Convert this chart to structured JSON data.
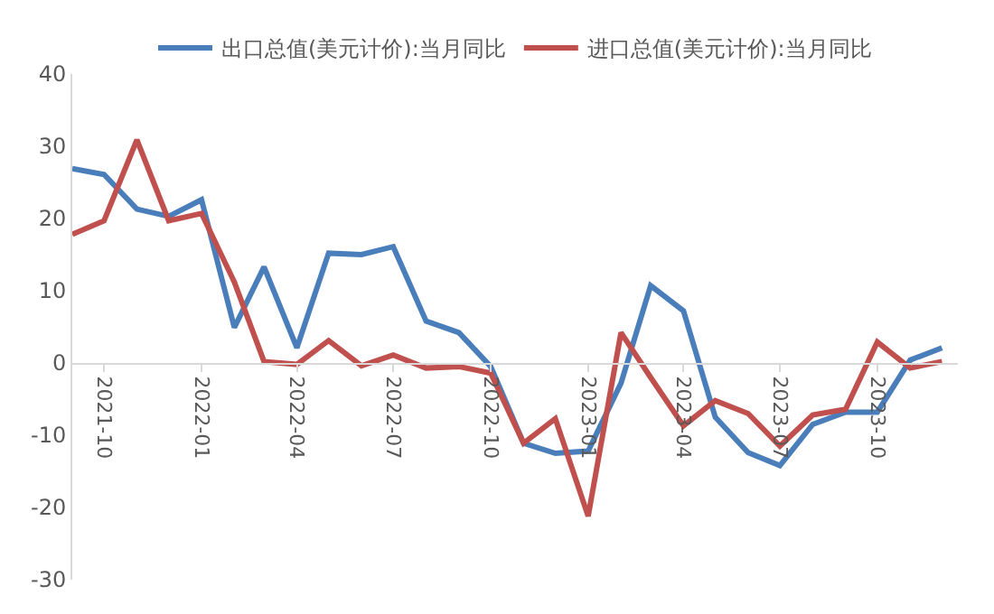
{
  "chart_data": {
    "type": "line",
    "x": [
      "2021-09",
      "2021-10",
      "2021-11",
      "2021-12",
      "2022-01",
      "2022-02",
      "2022-03",
      "2022-04",
      "2022-05",
      "2022-06",
      "2022-07",
      "2022-08",
      "2022-09",
      "2022-10",
      "2022-11",
      "2022-12",
      "2023-01",
      "2023-02",
      "2023-03",
      "2023-04",
      "2023-05",
      "2023-06",
      "2023-07",
      "2023-08",
      "2023-09",
      "2023-10",
      "2023-11",
      "2023-12"
    ],
    "series": [
      {
        "name": "出口总值(美元计价):当月同比",
        "color": "#4a7ebb",
        "values": [
          26.9,
          26.1,
          21.3,
          20.3,
          22.6,
          4.9,
          13.3,
          2.1,
          15.2,
          15.0,
          16.1,
          5.8,
          4.2,
          -0.5,
          -11.1,
          -12.5,
          -12.2,
          -2.8,
          10.7,
          7.2,
          -7.5,
          -12.4,
          -14.2,
          -8.5,
          -6.8,
          -6.8,
          0.4,
          2.1
        ]
      },
      {
        "name": "进口总值(美元计价):当月同比",
        "color": "#c0504d",
        "values": [
          17.8,
          19.7,
          30.9,
          19.7,
          20.7,
          11.2,
          0.2,
          -0.2,
          3.1,
          -0.4,
          1.1,
          -0.7,
          -0.5,
          -1.4,
          -11.1,
          -7.7,
          -21.2,
          4.2,
          -2.0,
          -8.7,
          -5.2,
          -7.0,
          -11.5,
          -7.2,
          -6.4,
          2.9,
          -0.7,
          0.2
        ]
      }
    ],
    "xlim": [
      "2021-09",
      "2023-12-16"
    ],
    "xticks": [
      {
        "value": "2021-10",
        "label": "2021-10"
      },
      {
        "value": "2022-01",
        "label": "2022-01"
      },
      {
        "value": "2022-04",
        "label": "2022-04"
      },
      {
        "value": "2022-07",
        "label": "2022-07"
      },
      {
        "value": "2022-10",
        "label": "2022-10"
      },
      {
        "value": "2023-01",
        "label": "2023-01"
      },
      {
        "value": "2023-04",
        "label": "2023-04"
      },
      {
        "value": "2023-07",
        "label": "2023-07"
      },
      {
        "value": "2023-10",
        "label": "2023-10"
      }
    ],
    "ylim": [
      -30,
      40
    ],
    "yticks": [
      -30,
      -20,
      -10,
      0,
      10,
      20,
      30,
      40
    ],
    "grid": false,
    "legend": "top",
    "marker": "none",
    "line_style": "solid"
  }
}
